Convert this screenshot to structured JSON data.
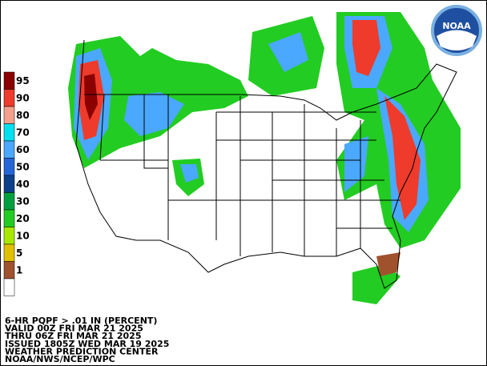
{
  "legend": {
    "items": [
      {
        "label": "95",
        "color": "#8b0000"
      },
      {
        "label": "90",
        "color": "#ee3b2b"
      },
      {
        "label": "80",
        "color": "#f4a08a"
      },
      {
        "label": "70",
        "color": "#00e0f0"
      },
      {
        "label": "60",
        "color": "#4aa8ff"
      },
      {
        "label": "50",
        "color": "#2466d8"
      },
      {
        "label": "40",
        "color": "#0e3f8a"
      },
      {
        "label": "30",
        "color": "#00a040"
      },
      {
        "label": "20",
        "color": "#22cc22"
      },
      {
        "label": "10",
        "color": "#a8e800"
      },
      {
        "label": "5",
        "color": "#e0c000"
      },
      {
        "label": "1",
        "color": "#a0522d"
      }
    ]
  },
  "logo": {
    "text": "NOAA"
  },
  "footer": {
    "lines": [
      "6-HR PQPF > .01 IN (PERCENT)",
      "VALID 00Z FRI MAR 21 2025",
      "THRU 06Z FRI MAR 21 2025",
      "ISSUED 1805Z WED MAR 19 2025",
      "WEATHER PREDICTION CENTER",
      "NOAA/NWS/NCEP/WPC"
    ]
  }
}
